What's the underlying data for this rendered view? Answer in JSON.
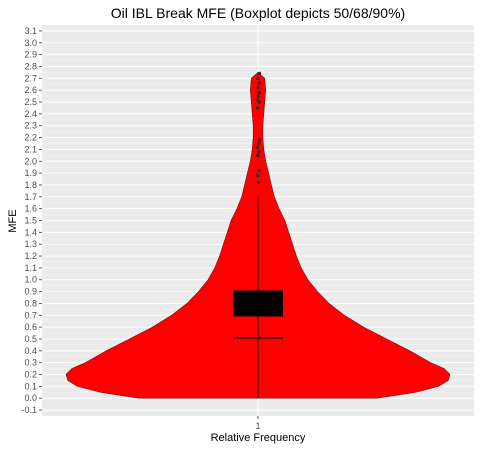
{
  "chart_data": {
    "type": "violin",
    "title": "Oil IBL Break MFE (Boxplot depicts 50/68/90%)",
    "xlabel": "Relative Frequency",
    "ylabel": "MFE",
    "categories": [
      "1"
    ],
    "ylim": [
      -0.15,
      3.15
    ],
    "yticks": [
      -0.1,
      0.0,
      0.1,
      0.2,
      0.3,
      0.4,
      0.5,
      0.6,
      0.7,
      0.8,
      0.9,
      1.0,
      1.1,
      1.2,
      1.3,
      1.4,
      1.5,
      1.6,
      1.7,
      1.8,
      1.9,
      2.0,
      2.1,
      2.2,
      2.3,
      2.4,
      2.5,
      2.6,
      2.7,
      2.8,
      2.9,
      3.0,
      3.1
    ],
    "grid": true,
    "violin": {
      "color": "#ff0000",
      "outline": "#7a1010",
      "ymin": 0.0,
      "ymax": 2.75,
      "density_profile": [
        [
          0.0,
          0.62
        ],
        [
          0.05,
          0.82
        ],
        [
          0.1,
          0.94
        ],
        [
          0.15,
          0.99
        ],
        [
          0.2,
          1.0
        ],
        [
          0.25,
          0.97
        ],
        [
          0.3,
          0.9
        ],
        [
          0.4,
          0.79
        ],
        [
          0.5,
          0.67
        ],
        [
          0.6,
          0.55
        ],
        [
          0.7,
          0.45
        ],
        [
          0.8,
          0.37
        ],
        [
          0.9,
          0.31
        ],
        [
          1.0,
          0.26
        ],
        [
          1.1,
          0.225
        ],
        [
          1.2,
          0.2
        ],
        [
          1.3,
          0.18
        ],
        [
          1.4,
          0.16
        ],
        [
          1.5,
          0.14
        ],
        [
          1.6,
          0.11
        ],
        [
          1.7,
          0.085
        ],
        [
          1.8,
          0.07
        ],
        [
          1.9,
          0.055
        ],
        [
          2.0,
          0.04
        ],
        [
          2.1,
          0.03
        ],
        [
          2.2,
          0.025
        ],
        [
          2.3,
          0.025
        ],
        [
          2.4,
          0.03
        ],
        [
          2.5,
          0.035
        ],
        [
          2.6,
          0.04
        ],
        [
          2.7,
          0.035
        ],
        [
          2.75,
          0.0
        ]
      ]
    },
    "box": {
      "color": "#000000",
      "lower": 0.69,
      "upper": 0.91,
      "median_line": 0.51,
      "whisker_low": 0.0,
      "whisker_high": 1.7
    },
    "outliers": [
      1.82,
      1.88,
      1.92,
      2.05,
      2.08,
      2.12,
      2.15,
      2.18,
      2.45,
      2.5,
      2.52,
      2.55,
      2.58,
      2.62,
      2.66,
      2.7,
      2.74
    ]
  }
}
